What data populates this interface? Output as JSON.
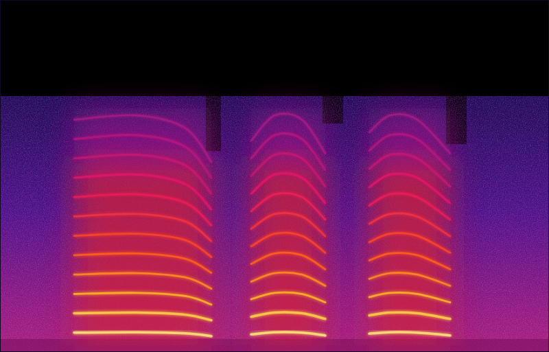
{
  "chart_data": {
    "type": "line",
    "xlim": [
      0,
      2
    ],
    "ylim": [
      0,
      10
    ],
    "tick_labels": false,
    "grid": false,
    "series": [
      {
        "x": [
          0.27,
          0.5,
          0.675,
          0.77
        ],
        "values": [
          0.55,
          0.56,
          0.53,
          0.45
        ]
      },
      {
        "x": [
          0.27,
          0.5,
          0.675,
          0.77
        ],
        "values": [
          1.1,
          1.12,
          1.06,
          0.9
        ]
      },
      {
        "x": [
          0.27,
          0.5,
          0.675,
          0.77
        ],
        "values": [
          1.65,
          1.68,
          1.59,
          1.35
        ]
      },
      {
        "x": [
          0.27,
          0.5,
          0.675,
          0.77
        ],
        "values": [
          2.2,
          2.24,
          2.12,
          1.8
        ]
      },
      {
        "x": [
          0.27,
          0.5,
          0.675,
          0.77
        ],
        "values": [
          2.75,
          2.8,
          2.65,
          2.25
        ]
      },
      {
        "x": [
          0.27,
          0.5,
          0.675,
          0.77
        ],
        "values": [
          3.3,
          3.36,
          3.18,
          2.7
        ]
      },
      {
        "x": [
          0.27,
          0.5,
          0.675,
          0.77
        ],
        "values": [
          3.85,
          3.92,
          3.71,
          3.15
        ]
      },
      {
        "x": [
          0.27,
          0.5,
          0.675,
          0.77
        ],
        "values": [
          4.4,
          4.48,
          4.24,
          3.6
        ]
      },
      {
        "x": [
          0.27,
          0.5,
          0.675,
          0.77
        ],
        "values": [
          4.95,
          5.04,
          4.77,
          4.05
        ]
      },
      {
        "x": [
          0.27,
          0.5,
          0.675,
          0.77
        ],
        "values": [
          5.5,
          5.6,
          5.3,
          4.5
        ]
      },
      {
        "x": [
          0.27,
          0.5,
          0.675,
          0.77
        ],
        "values": [
          6.05,
          6.16,
          5.83,
          4.95
        ]
      },
      {
        "x": [
          0.27,
          0.5,
          0.675,
          0.77
        ],
        "values": [
          6.6,
          6.72,
          6.36,
          5.4
        ]
      },
      {
        "x": [
          0.915,
          1.0,
          1.1,
          1.185
        ],
        "values": [
          0.5,
          0.56,
          0.55,
          0.47
        ]
      },
      {
        "x": [
          0.915,
          1.0,
          1.1,
          1.185
        ],
        "values": [
          1.0,
          1.12,
          1.1,
          0.94
        ]
      },
      {
        "x": [
          0.915,
          1.0,
          1.1,
          1.185
        ],
        "values": [
          1.5,
          1.68,
          1.65,
          1.41
        ]
      },
      {
        "x": [
          0.915,
          1.0,
          1.1,
          1.185
        ],
        "values": [
          2.0,
          2.24,
          2.2,
          1.88
        ]
      },
      {
        "x": [
          0.915,
          1.0,
          1.1,
          1.185
        ],
        "values": [
          2.5,
          2.8,
          2.75,
          2.35
        ]
      },
      {
        "x": [
          0.915,
          1.0,
          1.1,
          1.185
        ],
        "values": [
          3.0,
          3.36,
          3.3,
          2.82
        ]
      },
      {
        "x": [
          0.915,
          1.0,
          1.1,
          1.185
        ],
        "values": [
          3.5,
          3.92,
          3.85,
          3.29
        ]
      },
      {
        "x": [
          0.915,
          1.0,
          1.1,
          1.185
        ],
        "values": [
          4.0,
          4.48,
          4.4,
          3.76
        ]
      },
      {
        "x": [
          0.915,
          1.0,
          1.1,
          1.185
        ],
        "values": [
          4.5,
          5.04,
          4.95,
          4.23
        ]
      },
      {
        "x": [
          0.915,
          1.0,
          1.1,
          1.185
        ],
        "values": [
          5.0,
          5.6,
          5.5,
          4.7
        ]
      },
      {
        "x": [
          0.915,
          1.0,
          1.1,
          1.185
        ],
        "values": [
          5.5,
          6.16,
          6.05,
          5.17
        ]
      },
      {
        "x": [
          0.915,
          1.0,
          1.1,
          1.185
        ],
        "values": [
          6.0,
          6.72,
          6.6,
          5.64
        ]
      },
      {
        "x": [
          1.345,
          1.42,
          1.52,
          1.64
        ],
        "values": [
          0.52,
          0.56,
          0.55,
          0.47
        ]
      },
      {
        "x": [
          1.345,
          1.42,
          1.52,
          1.64
        ],
        "values": [
          1.04,
          1.12,
          1.1,
          0.94
        ]
      },
      {
        "x": [
          1.345,
          1.42,
          1.52,
          1.64
        ],
        "values": [
          1.56,
          1.68,
          1.65,
          1.41
        ]
      },
      {
        "x": [
          1.345,
          1.42,
          1.52,
          1.64
        ],
        "values": [
          2.08,
          2.24,
          2.2,
          1.88
        ]
      },
      {
        "x": [
          1.345,
          1.42,
          1.52,
          1.64
        ],
        "values": [
          2.6,
          2.8,
          2.75,
          2.35
        ]
      },
      {
        "x": [
          1.345,
          1.42,
          1.52,
          1.64
        ],
        "values": [
          3.12,
          3.36,
          3.3,
          2.82
        ]
      },
      {
        "x": [
          1.345,
          1.42,
          1.52,
          1.64
        ],
        "values": [
          3.64,
          3.92,
          3.85,
          3.29
        ]
      },
      {
        "x": [
          1.345,
          1.42,
          1.52,
          1.64
        ],
        "values": [
          4.16,
          4.48,
          4.4,
          3.76
        ]
      },
      {
        "x": [
          1.345,
          1.42,
          1.52,
          1.64
        ],
        "values": [
          4.68,
          5.04,
          4.95,
          4.23
        ]
      },
      {
        "x": [
          1.345,
          1.42,
          1.52,
          1.64
        ],
        "values": [
          5.2,
          5.6,
          5.5,
          4.7
        ]
      },
      {
        "x": [
          1.345,
          1.42,
          1.52,
          1.64
        ],
        "values": [
          5.72,
          6.16,
          6.05,
          5.17
        ]
      },
      {
        "x": [
          1.345,
          1.42,
          1.52,
          1.64
        ],
        "values": [
          6.24,
          6.72,
          6.6,
          5.64
        ]
      }
    ]
  }
}
